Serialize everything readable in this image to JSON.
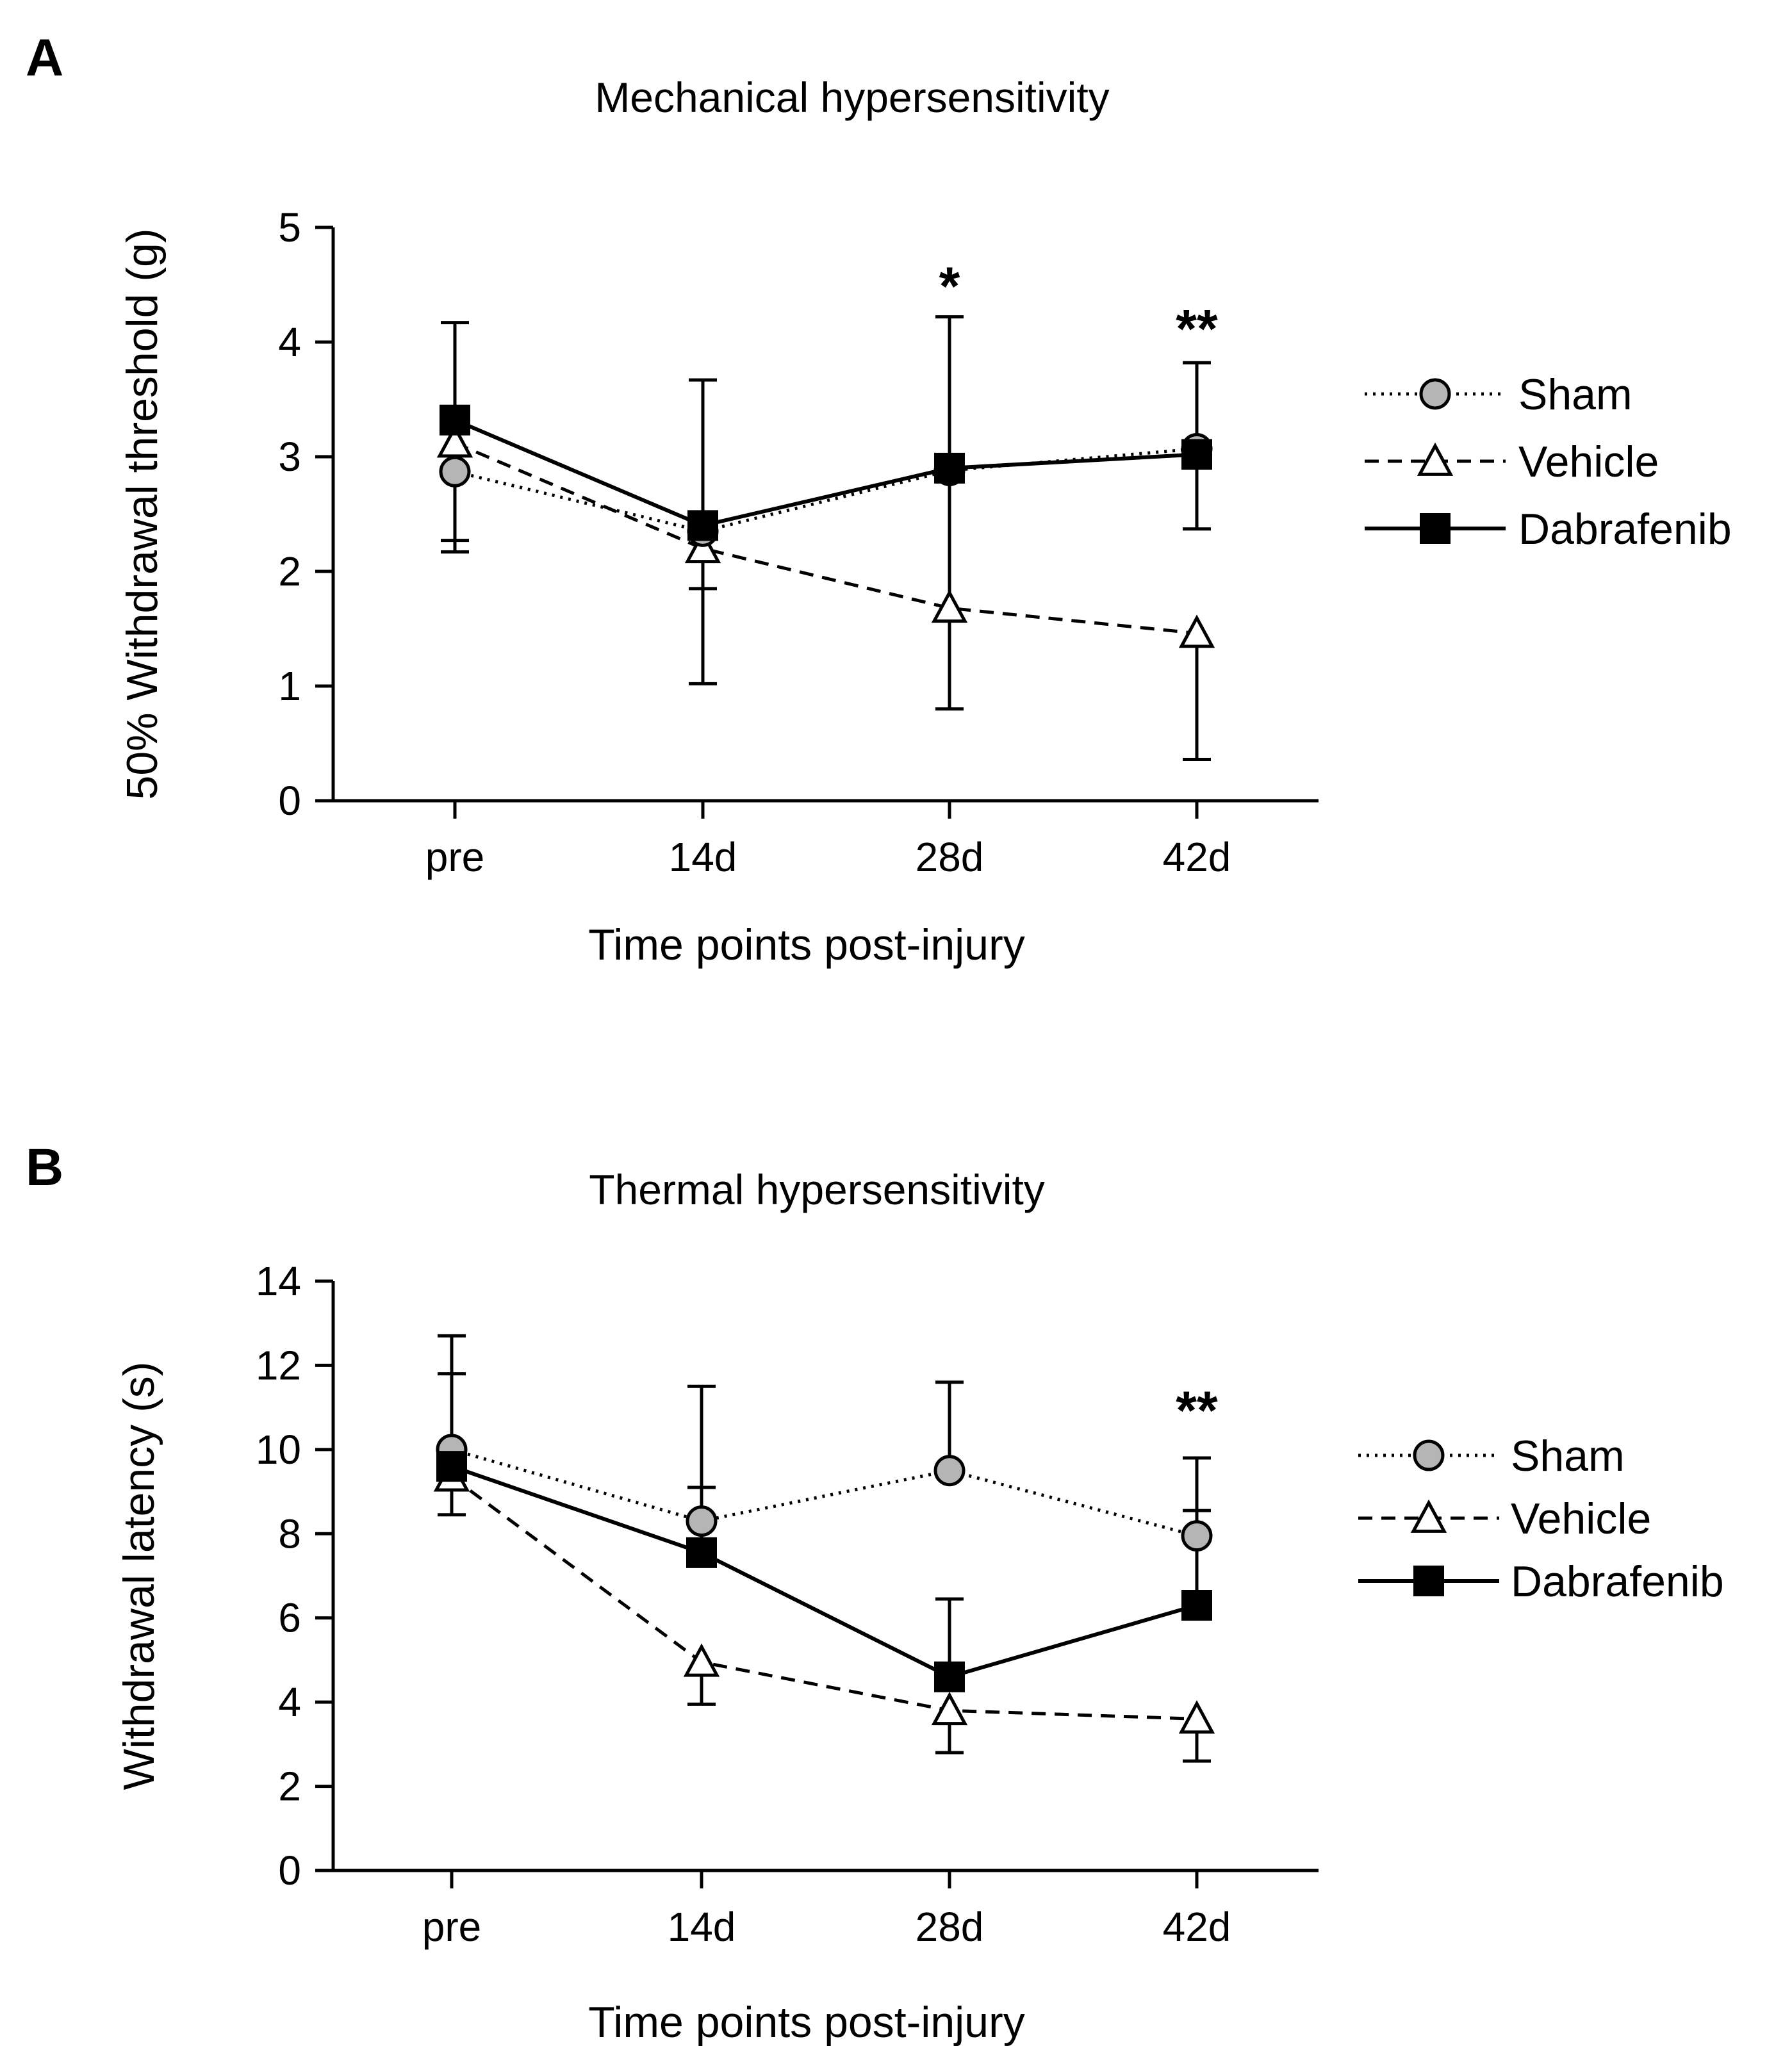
{
  "chart_data": [
    {
      "panel": "A",
      "type": "line",
      "title": "Mechanical hypersensitivity",
      "xlabel": "Time points post-injury",
      "ylabel": "50% Withdrawal threshold (g)",
      "categories": [
        "pre",
        "14d",
        "28d",
        "42d"
      ],
      "ylim": [
        0,
        5
      ],
      "yticks": [
        "0",
        "1",
        "2",
        "3",
        "4",
        "5"
      ],
      "series": [
        {
          "name": "Sham",
          "values": [
            2.87,
            2.35,
            2.88,
            3.07
          ],
          "err": [
            0.6,
            0.5,
            1.3,
            0.7
          ],
          "err_dir": "down",
          "line": "dotted",
          "marker": "circle",
          "color": "#b5b5b5"
        },
        {
          "name": "Vehicle",
          "values": [
            3.12,
            2.2,
            1.68,
            1.46
          ],
          "err": [
            0.95,
            1.18,
            0.88,
            1.1
          ],
          "err_dir": "down",
          "line": "dashed",
          "marker": "triangle",
          "color": "#ffffff"
        },
        {
          "name": "Dabrafenib",
          "values": [
            3.32,
            2.4,
            2.9,
            3.02
          ],
          "err": [
            0.85,
            1.27,
            1.32,
            0.8
          ],
          "err_dir": "up",
          "line": "solid",
          "marker": "square",
          "color": "#000000"
        }
      ],
      "annotations": [
        {
          "category": "28d",
          "text": "*",
          "y": 4.55
        },
        {
          "category": "42d",
          "text": "**",
          "y": 4.18
        }
      ],
      "legend": "right"
    },
    {
      "panel": "B",
      "type": "line",
      "title": "Thermal hypersensitivity",
      "xlabel": "Time points post-injury",
      "ylabel": "Withdrawal latency (s)",
      "categories": [
        "pre",
        "14d",
        "28d",
        "42d"
      ],
      "ylim": [
        0,
        14
      ],
      "yticks": [
        "0",
        "2",
        "4",
        "6",
        "8",
        "10",
        "12",
        "14"
      ],
      "series": [
        {
          "name": "Sham",
          "values": [
            10.0,
            8.3,
            9.5,
            7.95
          ],
          "err": [
            2.7,
            3.2,
            2.1,
            1.85
          ],
          "err_dir": "up",
          "line": "dotted",
          "marker": "circle",
          "color": "#b5b5b5"
        },
        {
          "name": "Vehicle",
          "values": [
            9.35,
            4.95,
            3.8,
            3.6
          ],
          "err": [
            0.9,
            1.0,
            1.0,
            1.0
          ],
          "err_dir": "down",
          "line": "dashed",
          "marker": "triangle",
          "color": "#ffffff"
        },
        {
          "name": "Dabrafenib",
          "values": [
            9.6,
            7.55,
            4.6,
            6.3
          ],
          "err": [
            2.2,
            1.55,
            1.85,
            2.25
          ],
          "err_dir": "up",
          "line": "solid",
          "marker": "square",
          "color": "#000000"
        }
      ],
      "annotations": [
        {
          "category": "42d",
          "text": "**",
          "y": 11.1
        }
      ],
      "legend": "right"
    }
  ]
}
